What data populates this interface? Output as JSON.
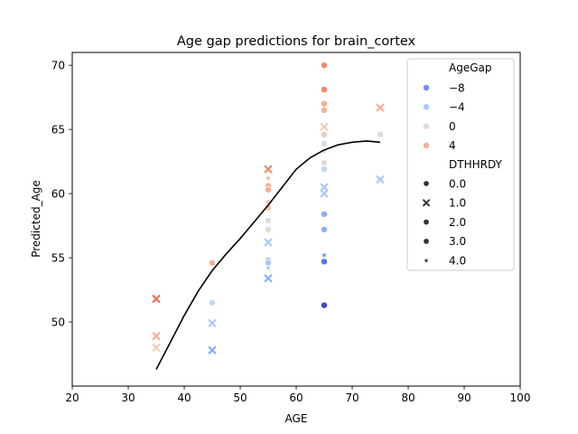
{
  "chart_data": {
    "type": "scatter",
    "title": "Age gap predictions for brain_cortex",
    "xlabel": "AGE",
    "ylabel": "Predicted_Age",
    "xlim": [
      20,
      100
    ],
    "ylim": [
      45,
      71
    ],
    "xticks": [
      20,
      30,
      40,
      50,
      60,
      70,
      80,
      90,
      100
    ],
    "yticks": [
      50,
      55,
      60,
      65,
      70
    ],
    "grid": false,
    "legend": {
      "position": "top-right",
      "hue_title": "AgeGap",
      "hue_entries": [
        {
          "label": "−8",
          "color": "#6f92f3"
        },
        {
          "label": "−4",
          "color": "#aac7fd"
        },
        {
          "label": "0",
          "color": "#dddcdc"
        },
        {
          "label": "4",
          "color": "#f7b093"
        }
      ],
      "style_title": "DTHHRDY",
      "style_entries": [
        {
          "label": "0.0",
          "marker": "circle"
        },
        {
          "label": "1.0",
          "marker": "x"
        },
        {
          "label": "2.0",
          "marker": "circle"
        },
        {
          "label": "3.0",
          "marker": "circle"
        },
        {
          "label": "4.0",
          "marker": "star"
        }
      ]
    },
    "hue_colors": {
      "-14": "#3b4cc0",
      "-10": "#5977e3",
      "-8": "#6f92f3",
      "-6": "#8caffe",
      "-4": "#aac7fd",
      "-2": "#c5d6f2",
      "0": "#dddcdc",
      "2": "#f2cab5",
      "4": "#f7b093",
      "6": "#f08a6c",
      "7": "#e7745b"
    },
    "points": [
      {
        "x": 35,
        "y": 51.8,
        "gap": 7,
        "marker": "x"
      },
      {
        "x": 35,
        "y": 48.9,
        "gap": 4,
        "marker": "x"
      },
      {
        "x": 35,
        "y": 48.0,
        "gap": 2,
        "marker": "x"
      },
      {
        "x": 45,
        "y": 54.6,
        "gap": 4,
        "marker": "circle"
      },
      {
        "x": 45,
        "y": 51.5,
        "gap": -2,
        "marker": "circle"
      },
      {
        "x": 45,
        "y": 49.9,
        "gap": -4,
        "marker": "x"
      },
      {
        "x": 45,
        "y": 47.8,
        "gap": -6,
        "marker": "x"
      },
      {
        "x": 55,
        "y": 61.9,
        "gap": 6,
        "marker": "x"
      },
      {
        "x": 55,
        "y": 61.2,
        "gap": 4,
        "marker": "star"
      },
      {
        "x": 55,
        "y": 60.6,
        "gap": 4,
        "marker": "circle"
      },
      {
        "x": 55,
        "y": 60.3,
        "gap": 4,
        "marker": "circle"
      },
      {
        "x": 55,
        "y": 59.3,
        "gap": 2,
        "marker": "circle"
      },
      {
        "x": 55,
        "y": 58.9,
        "gap": 2,
        "marker": "circle"
      },
      {
        "x": 55,
        "y": 57.9,
        "gap": 0,
        "marker": "circle"
      },
      {
        "x": 55,
        "y": 57.2,
        "gap": 0,
        "marker": "circle"
      },
      {
        "x": 55,
        "y": 56.2,
        "gap": -4,
        "marker": "x"
      },
      {
        "x": 55,
        "y": 54.8,
        "gap": -4,
        "marker": "circle"
      },
      {
        "x": 55,
        "y": 54.6,
        "gap": -4,
        "marker": "circle"
      },
      {
        "x": 55,
        "y": 54.2,
        "gap": -4,
        "marker": "star"
      },
      {
        "x": 55,
        "y": 53.4,
        "gap": -6,
        "marker": "x"
      },
      {
        "x": 65,
        "y": 70.0,
        "gap": 6,
        "marker": "circle"
      },
      {
        "x": 65,
        "y": 68.1,
        "gap": 6,
        "marker": "circle"
      },
      {
        "x": 65,
        "y": 67.0,
        "gap": 4,
        "marker": "circle"
      },
      {
        "x": 65,
        "y": 66.5,
        "gap": 4,
        "marker": "circle"
      },
      {
        "x": 65,
        "y": 65.2,
        "gap": 2,
        "marker": "x"
      },
      {
        "x": 65,
        "y": 64.6,
        "gap": 2,
        "marker": "circle"
      },
      {
        "x": 65,
        "y": 63.9,
        "gap": 0,
        "marker": "circle"
      },
      {
        "x": 65,
        "y": 63.3,
        "gap": 2,
        "marker": "star"
      },
      {
        "x": 65,
        "y": 62.4,
        "gap": 0,
        "marker": "circle"
      },
      {
        "x": 65,
        "y": 61.9,
        "gap": -2,
        "marker": "circle"
      },
      {
        "x": 65,
        "y": 60.5,
        "gap": -4,
        "marker": "x"
      },
      {
        "x": 65,
        "y": 60.0,
        "gap": -4,
        "marker": "x"
      },
      {
        "x": 65,
        "y": 58.4,
        "gap": -6,
        "marker": "circle"
      },
      {
        "x": 65,
        "y": 57.2,
        "gap": -6,
        "marker": "circle"
      },
      {
        "x": 65,
        "y": 55.2,
        "gap": -8,
        "marker": "star"
      },
      {
        "x": 65,
        "y": 54.7,
        "gap": -10,
        "marker": "circle"
      },
      {
        "x": 65,
        "y": 51.3,
        "gap": -14,
        "marker": "circle"
      },
      {
        "x": 75,
        "y": 66.7,
        "gap": 4,
        "marker": "x"
      },
      {
        "x": 75,
        "y": 64.6,
        "gap": 0,
        "marker": "circle"
      },
      {
        "x": 75,
        "y": 61.1,
        "gap": -4,
        "marker": "x"
      }
    ],
    "trend_line": {
      "color": "#000000",
      "x": [
        35,
        37.5,
        40,
        42.5,
        45,
        47.5,
        50,
        52.5,
        55,
        57.5,
        60,
        62.5,
        65,
        67.5,
        70,
        72.5,
        75
      ],
      "y": [
        46.3,
        48.4,
        50.5,
        52.4,
        54.0,
        55.3,
        56.5,
        57.8,
        59.1,
        60.5,
        61.9,
        62.8,
        63.4,
        63.8,
        64.0,
        64.1,
        64.0
      ]
    }
  }
}
